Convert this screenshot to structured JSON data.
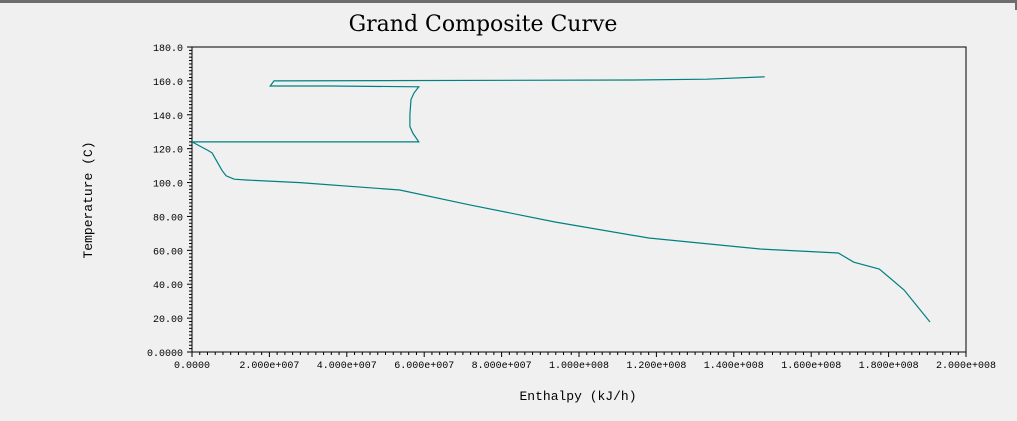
{
  "chart_data": {
    "type": "line",
    "title": "Grand Composite Curve",
    "xlabel": "Enthalpy (kJ/h)",
    "ylabel": "Temperature (C)",
    "xlim": [
      0,
      200000000
    ],
    "ylim": [
      0,
      180
    ],
    "x_tick_labels": [
      "0.0000",
      "2.000e+007",
      "4.000e+007",
      "6.000e+007",
      "8.000e+007",
      "1.000e+008",
      "1.200e+008",
      "1.400e+008",
      "1.600e+008",
      "1.800e+008",
      "2.000e+008"
    ],
    "y_tick_labels": [
      "0.0000",
      "20.00",
      "40.00",
      "60.00",
      "80.00",
      "100.0",
      "120.0",
      "140.0",
      "160.0",
      "180.0"
    ],
    "grid": false,
    "line_color": "#008080",
    "series": [
      {
        "x": [
          148000000,
          133000000,
          114000000,
          21200000,
          20200000,
          35700000,
          58600000,
          57400000,
          56600000,
          56300000,
          56300000,
          57100000,
          58600000,
          0,
          4100000,
          5200000,
          7800000,
          8800000,
          10900000,
          14000000,
          27900000,
          53700000,
          71800000,
          93800000,
          118000000,
          146800000,
          167000000,
          171000000,
          177600000,
          184000000,
          190700000
        ],
        "y": [
          162.4,
          161,
          160.5,
          160,
          157,
          157,
          156.5,
          153,
          149,
          140,
          133,
          129,
          124,
          124,
          119,
          117.5,
          107,
          104,
          102,
          101.5,
          100,
          95.6,
          86.8,
          76.7,
          67.3,
          60.8,
          58.4,
          53,
          49,
          36.6,
          17.7
        ]
      }
    ]
  }
}
